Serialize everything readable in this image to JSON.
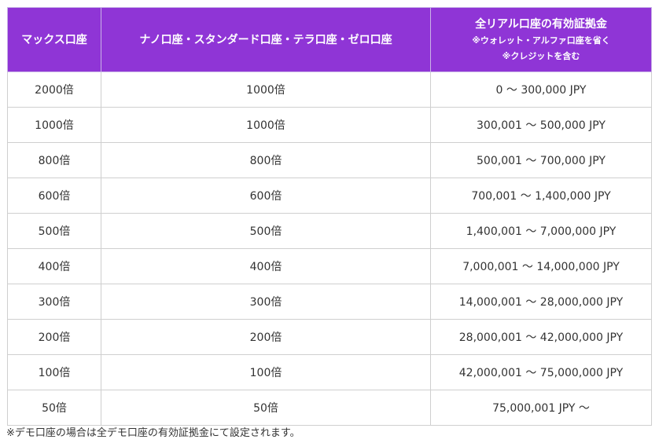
{
  "table": {
    "headers": {
      "col1": "マックス口座",
      "col2": "ナノ口座・スタンダード口座・テラ口座・ゼロ口座",
      "col3_main": "全リアル口座の有効証拠金",
      "col3_note1": "※ウォレット・アルファ口座を省く",
      "col3_note2": "※クレジットを含む"
    },
    "rows": [
      [
        "2000倍",
        "1000倍",
        "0 〜 300,000 JPY"
      ],
      [
        "1000倍",
        "1000倍",
        "300,001 〜 500,000 JPY"
      ],
      [
        "800倍",
        "800倍",
        "500,001 〜 700,000 JPY"
      ],
      [
        "600倍",
        "600倍",
        "700,001 〜 1,400,000 JPY"
      ],
      [
        "500倍",
        "500倍",
        "1,400,001 〜 7,000,000 JPY"
      ],
      [
        "400倍",
        "400倍",
        "7,000,001 〜 14,000,000 JPY"
      ],
      [
        "300倍",
        "300倍",
        "14,000,001 〜 28,000,000 JPY"
      ],
      [
        "200倍",
        "200倍",
        "28,000,001 〜 42,000,000 JPY"
      ],
      [
        "100倍",
        "100倍",
        "42,000,001 〜 75,000,000 JPY"
      ],
      [
        "50倍",
        "50倍",
        "75,000,001 JPY 〜"
      ]
    ]
  },
  "footnote": "※デモ口座の場合は全デモ口座の有効証拠金にて設定されます。",
  "colors": {
    "header_bg": "#8f35d6",
    "header_text": "#ffffff",
    "border": "#cfcfcf",
    "text": "#333333"
  }
}
